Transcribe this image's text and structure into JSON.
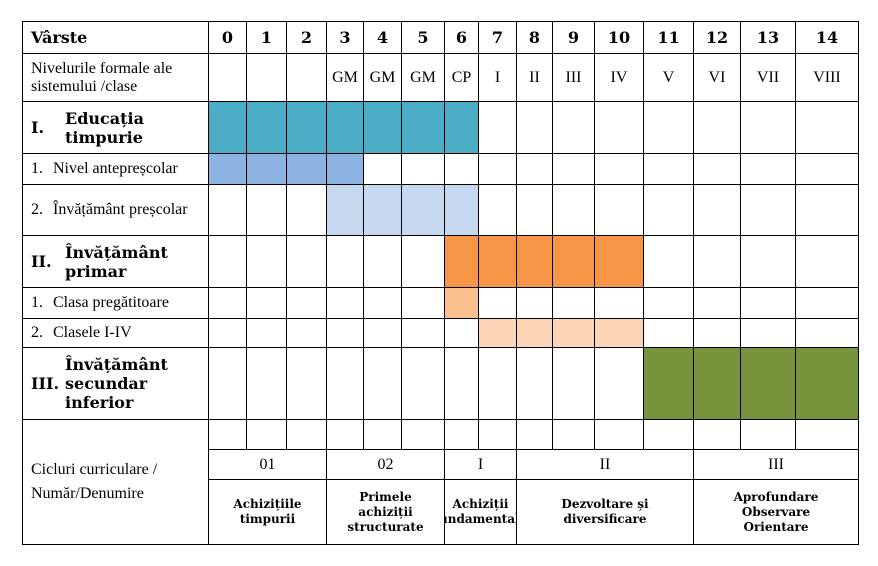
{
  "header": {
    "corner": "Vârste",
    "ages": [
      "0",
      "1",
      "2",
      "3",
      "4",
      "5",
      "6",
      "7",
      "8",
      "9",
      "10",
      "11",
      "12",
      "13",
      "14"
    ],
    "levels_label": "Nivelurile formale ale sistemului /clase",
    "levels": [
      "",
      "",
      "",
      "GM",
      "GM",
      "GM",
      "CP",
      "I",
      "II",
      "III",
      "IV",
      "V",
      "VI",
      "VII",
      "VIII"
    ]
  },
  "rows": [
    {
      "number": "I.",
      "label": "Educația timpurie",
      "bold": true
    },
    {
      "number": "1.",
      "label": "Nivel antepreșcolar",
      "bold": false
    },
    {
      "number": "2.",
      "label": "Învățământ preșcolar",
      "bold": false
    },
    {
      "number": "II.",
      "label": "Învățământ primar",
      "bold": true
    },
    {
      "number": "1.",
      "label": "Clasa pregătitoare",
      "bold": false
    },
    {
      "number": "2.",
      "label": "Clasele I-IV",
      "bold": false
    },
    {
      "number": "III.",
      "label": "Învățământ secundar inferior",
      "bold": true
    }
  ],
  "colors": {
    "early_education": "#4bacc6",
    "ante_prescolar": "#8db3e2",
    "prescolar": "#c6d9f1",
    "primar": "#f79646",
    "clasa_pregatitoare": "#fabf8f",
    "clasele_I_IV": "#fbd5b5",
    "secundar": "#77933c"
  },
  "cycles": {
    "label": "Cicluri curriculare / Număr/Denumire",
    "numbers": [
      "01",
      "02",
      "I",
      "II",
      "III"
    ],
    "names": [
      "Achizițiile timpurii",
      "Primele achiziții structurate",
      "Achiziții fundamentale",
      "Dezvoltare și diversificare",
      "Aprofundare Observare Orientare"
    ]
  }
}
